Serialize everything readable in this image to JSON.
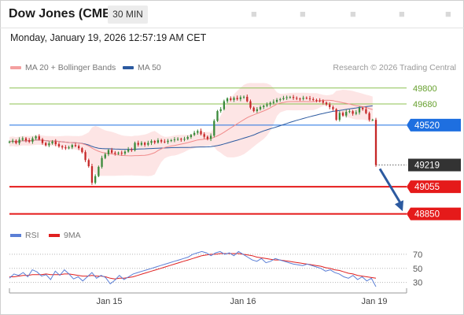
{
  "header": {
    "title": "Dow Jones (CME)",
    "timeframe": "30 MIN",
    "datetime": "Monday, January 19, 2026 12:57:19 AM CET"
  },
  "icons": [
    "chart-settings-icon",
    "compare-icon",
    "fullscreen-icon",
    "share-icon",
    "close-icon"
  ],
  "legend": {
    "ma20_label": "MA 20 + Bollinger Bands",
    "ma50_label": "MA 50",
    "credit": "Research © 2026 Trading Central",
    "ma20_color": "#f47c7c",
    "ma50_color": "#2c5aa0"
  },
  "rsi_legend": {
    "rsi_label": "RSI",
    "ma9_label": "9MA",
    "rsi_color": "#5b7fd6",
    "ma9_color": "#e02020"
  },
  "chart_data": [
    {
      "type": "candlestick",
      "title": "Dow Jones (CME)",
      "ylim": [
        48800,
        49870
      ],
      "x_ticks": [
        "Jan 15",
        "Jan 16",
        "Jan 19"
      ],
      "levels": [
        {
          "value": "49800",
          "kind": "resistance",
          "color": "#8cc152"
        },
        {
          "value": "49680",
          "kind": "resistance",
          "color": "#8cc152"
        },
        {
          "value": "49520",
          "kind": "pivot",
          "color": "#1e6fe0"
        },
        {
          "value": "49219",
          "kind": "last-price",
          "color": "#333333"
        },
        {
          "value": "49055",
          "kind": "support",
          "color": "#e51a1a"
        },
        {
          "value": "48850",
          "kind": "support",
          "color": "#e51a1a"
        }
      ],
      "close": [
        49395,
        49402,
        49384,
        49410,
        49420,
        49405,
        49395,
        49420,
        49435,
        49412,
        49385,
        49368,
        49382,
        49396,
        49376,
        49360,
        49352,
        49345,
        49352,
        49370,
        49362,
        49346,
        49316,
        49256,
        49210,
        49085,
        49135,
        49205,
        49272,
        49300,
        49332,
        49312,
        49305,
        49312,
        49306,
        49320,
        49336,
        49330,
        49386,
        49372,
        49386,
        49372,
        49386,
        49400,
        49388,
        49406,
        49396,
        49392,
        49402,
        49406,
        49412,
        49416,
        49410,
        49416,
        49430,
        49446,
        49462,
        49476,
        49452,
        49432,
        49416,
        49440,
        49552,
        49626,
        49640,
        49700,
        49722,
        49710,
        49725,
        49716,
        49730,
        49734,
        49700,
        49652,
        49626,
        49640,
        49656,
        49666,
        49676,
        49688,
        49696,
        49710,
        49716,
        49724,
        49730,
        49732,
        49725,
        49720,
        49718,
        49726,
        49722,
        49716,
        49710,
        49706,
        49702,
        49690,
        49676,
        49656,
        49640,
        49560,
        49612,
        49592,
        49620,
        49625,
        49606,
        49616,
        49650,
        49640,
        49610,
        49560,
        49560,
        49219
      ],
      "rsi": {
        "levels": [
          70,
          50,
          30
        ],
        "rsi_values": [
          36,
          42,
          40,
          44,
          38,
          48,
          45,
          39,
          41,
          34,
          46,
          40,
          48,
          42,
          35,
          38,
          32,
          38,
          44,
          36,
          40,
          37,
          28,
          33,
          40,
          34,
          38,
          42,
          44,
          46,
          48,
          50,
          52,
          54,
          56,
          58,
          60,
          62,
          64,
          66,
          70,
          72,
          74,
          72,
          68,
          72,
          74,
          70,
          72,
          68,
          74,
          70,
          66,
          62,
          60,
          64,
          58,
          60,
          64,
          62,
          60,
          58,
          56,
          55,
          54,
          56,
          54,
          52,
          50,
          46,
          48,
          44,
          42,
          38,
          36,
          40,
          34,
          38,
          32,
          36,
          24
        ],
        "ma9_values": [
          38,
          38,
          39,
          40,
          40,
          41,
          41,
          41,
          42,
          41,
          41,
          41,
          42,
          42,
          41,
          40,
          39,
          39,
          40,
          39,
          39,
          38,
          36,
          35,
          36,
          36,
          37,
          38,
          40,
          42,
          44,
          46,
          48,
          50,
          52,
          54,
          56,
          58,
          60,
          62,
          64,
          66,
          68,
          69,
          70,
          70,
          71,
          71,
          71,
          71,
          71,
          70,
          69,
          68,
          66,
          65,
          64,
          63,
          62,
          62,
          61,
          60,
          59,
          58,
          57,
          56,
          55,
          54,
          53,
          51,
          50,
          48,
          47,
          45,
          43,
          42,
          40,
          39,
          38,
          37,
          36
        ]
      }
    }
  ]
}
